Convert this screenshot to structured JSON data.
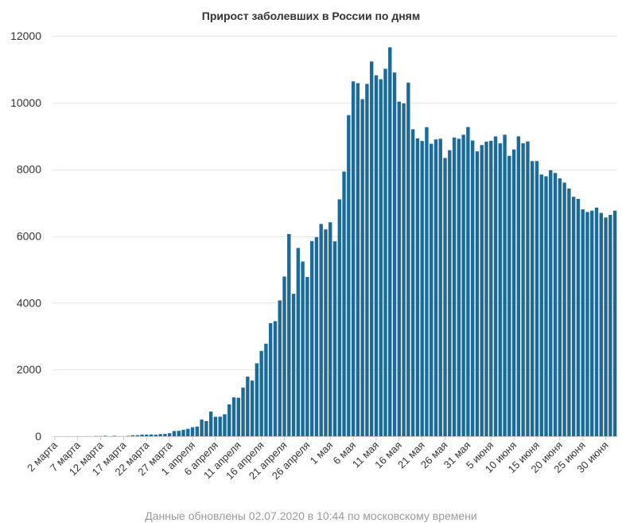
{
  "title": "Прирост заболевших в России по дням",
  "footer": "Данные обновлены 02.07.2020 в 10:44 по московскому времени",
  "colors": {
    "bar": "#1a6a9a",
    "grid": "#e6e6e6",
    "text": "#333333",
    "footer": "#999999"
  },
  "chart_data": {
    "type": "bar",
    "start_date": "2020-03-02",
    "ylim": [
      0,
      12000
    ],
    "yticks": [
      0,
      2000,
      4000,
      6000,
      8000,
      10000,
      12000
    ],
    "xtick_labels": [
      "2 марта",
      "7 марта",
      "12 марта",
      "17 марта",
      "22 марта",
      "27 марта",
      "1 апреля",
      "6 апреля",
      "11 апреля",
      "16 апреля",
      "21 апреля",
      "26 апреля",
      "1 мая",
      "6 мая",
      "11 мая",
      "16 мая",
      "21 мая",
      "26 мая",
      "31 мая",
      "5 июня",
      "10 июня",
      "15 июня",
      "20 июня",
      "25 июня",
      "30 июня"
    ],
    "values": [
      1,
      0,
      1,
      2,
      1,
      3,
      0,
      3,
      0,
      7,
      6,
      14,
      0,
      13,
      2,
      3,
      11,
      29,
      32,
      48,
      49,
      52,
      47,
      65,
      70,
      91,
      155,
      164,
      194,
      223,
      270,
      291,
      499,
      455,
      740,
      582,
      587,
      658,
      954,
      1164,
      1154,
      1459,
      1786,
      1667,
      2186,
      2558,
      2774,
      3388,
      3448,
      4070,
      4785,
      6060,
      4268,
      5642,
      5236,
      4774,
      5849,
      5966,
      6361,
      6198,
      6411,
      5841,
      7099,
      7933,
      9623,
      10633,
      10581,
      10102,
      10559,
      11231,
      10817,
      10699,
      11012,
      11656,
      10899,
      10028,
      9974,
      10598,
      9200,
      8926,
      8849,
      9263,
      8764,
      8894,
      8915,
      8338,
      8572,
      8952,
      8915,
      9035,
      9268,
      8863,
      8536,
      8726,
      8831,
      8855,
      8985,
      8779,
      9035,
      8404,
      8595,
      8987,
      8779,
      8835,
      8246,
      8248,
      7843,
      7790,
      7972,
      7889,
      7728,
      7600,
      7425,
      7176,
      7113,
      6800,
      6719,
      6760,
      6852,
      6693,
      6556,
      6632,
      6760
    ]
  }
}
